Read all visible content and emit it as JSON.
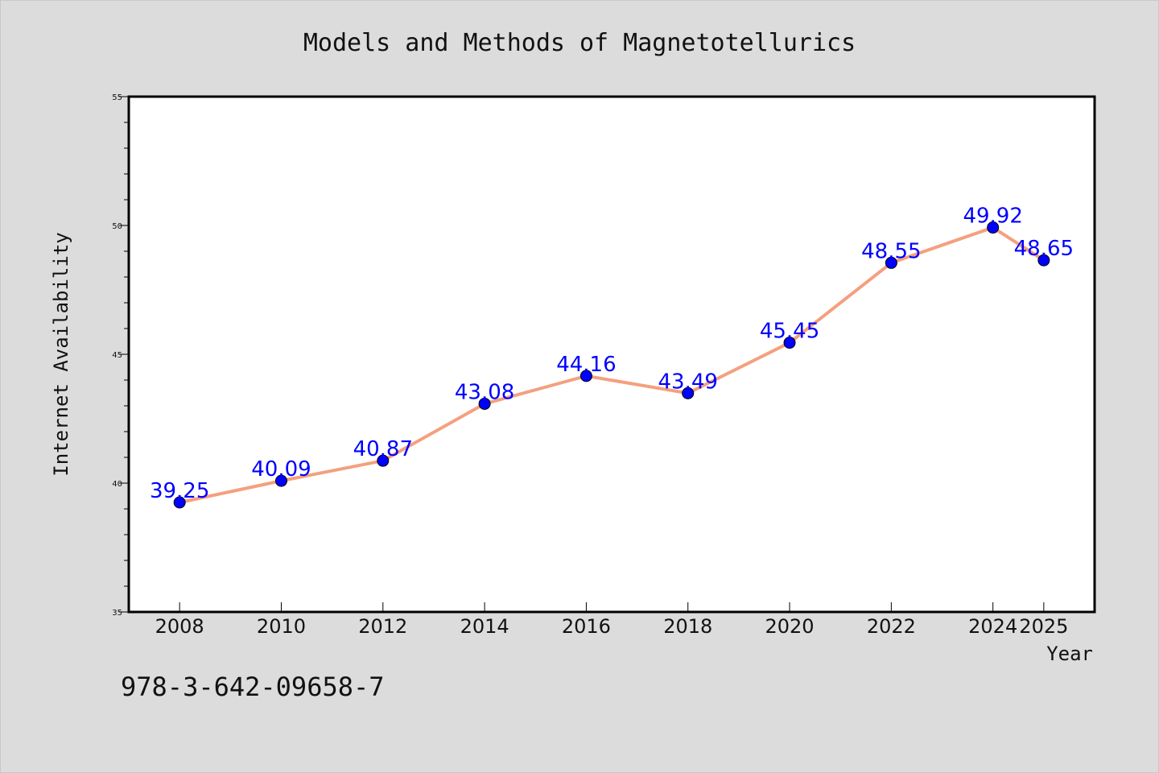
{
  "chart_data": {
    "type": "line",
    "title": "Models and Methods of Magnetotellurics",
    "xlabel": "Year",
    "ylabel": "Internet Availability",
    "x": [
      "2008",
      "2010",
      "2012",
      "2014",
      "2016",
      "2018",
      "2020",
      "2022",
      "2024",
      "2025"
    ],
    "series": [
      {
        "values": [
          39.25,
          40.09,
          40.87,
          43.08,
          44.16,
          43.49,
          45.45,
          48.55,
          49.92,
          48.65
        ],
        "data_labels": [
          "39.25",
          "40.09",
          "40.87",
          "43.08",
          "44.16",
          "43.49",
          "45.45",
          "48.55",
          "49.92",
          "48.65"
        ]
      }
    ],
    "ylim": [
      35,
      55
    ],
    "yticks": [
      "35",
      "40",
      "45",
      "50",
      "55"
    ],
    "grid": false,
    "colors": {
      "line": "#f4a07e",
      "marker": "#0000ff",
      "data_label": "#0000ff",
      "background": "#dcdcdc",
      "plot_background": "#ffffff"
    }
  },
  "footer": {
    "isbn": "978-3-642-09658-7"
  }
}
